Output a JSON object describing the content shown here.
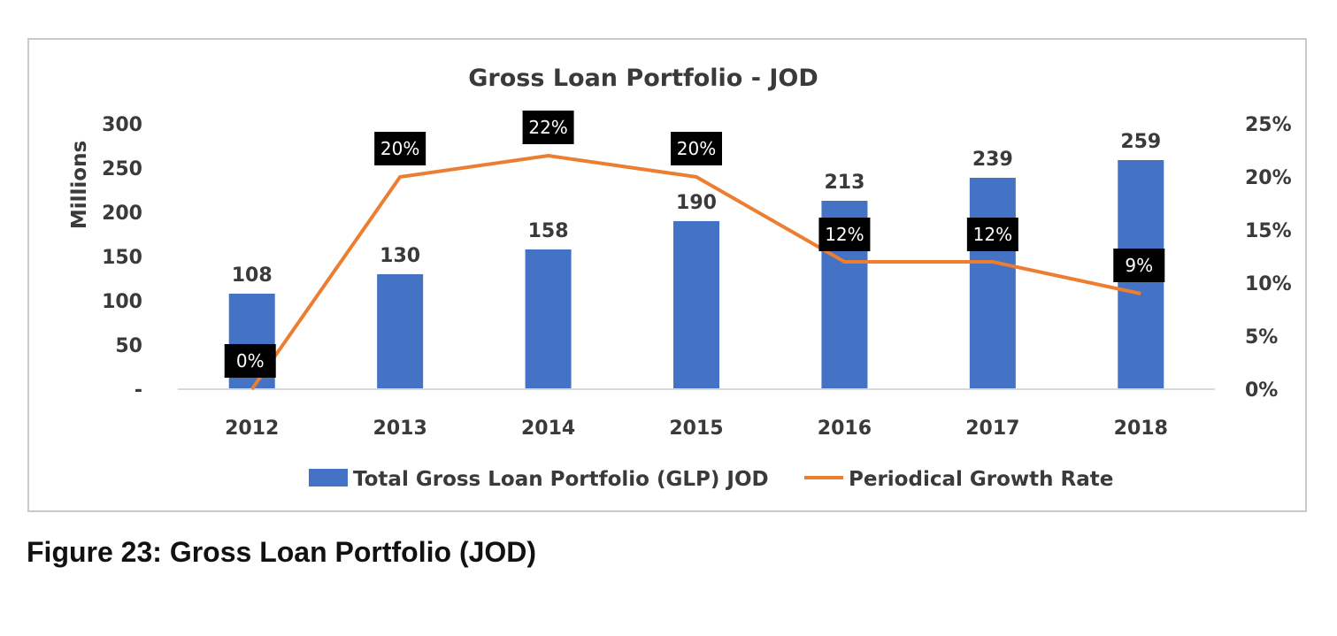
{
  "caption": "Figure 23: Gross Loan Portfolio (JOD)",
  "chart_data": {
    "type": "bar",
    "title": "Gross Loan Portfolio - JOD",
    "categories": [
      "2012",
      "2013",
      "2014",
      "2015",
      "2016",
      "2017",
      "2018"
    ],
    "series": [
      {
        "name": "Total Gross Loan Portfolio (GLP) JOD",
        "type": "bar",
        "axis": "left",
        "values": [
          108,
          130,
          158,
          190,
          213,
          239,
          259
        ],
        "labels": [
          "108",
          "130",
          "158",
          "190",
          "213",
          "239",
          "259"
        ],
        "color": "#4472c4"
      },
      {
        "name": "Periodical Growth Rate",
        "type": "line",
        "axis": "right",
        "values": [
          0,
          20,
          22,
          20,
          12,
          12,
          9
        ],
        "labels": [
          "0%",
          "20%",
          "22%",
          "20%",
          "12%",
          "12%",
          "9%"
        ],
        "color": "#ed7d31"
      }
    ],
    "ylabel": "Millions",
    "ylim": [
      0,
      300
    ],
    "y_ticks": [
      "-",
      "50",
      "100",
      "150",
      "200",
      "250",
      "300"
    ],
    "y2lim": [
      0,
      25
    ],
    "y2_ticks": [
      "0%",
      "5%",
      "10%",
      "15%",
      "20%",
      "25%"
    ],
    "grid": false,
    "legend_position": "bottom"
  }
}
